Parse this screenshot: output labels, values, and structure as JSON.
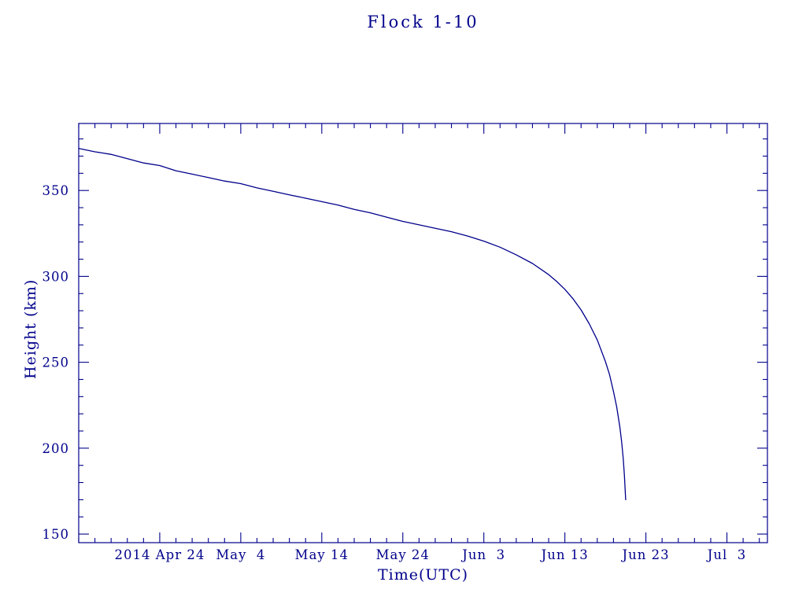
{
  "page": {
    "background": "#ffffff",
    "accent": "#00008b"
  },
  "chart_data": {
    "type": "line",
    "title": "Flock 1-10",
    "xlabel": "Time(UTC)",
    "ylabel": "Height (km)",
    "line_color": "#00008b",
    "axis_color": "#00008b",
    "grid": "off",
    "legend": "none",
    "x_axis": {
      "unit": "date, 2014 (UTC)",
      "day0_date": "2014 Apr 14",
      "range_days": [
        0,
        85
      ],
      "minor_tick_step_days": 2,
      "major_ticks": [
        {
          "day": 10,
          "label": "2014 Apr 24"
        },
        {
          "day": 20,
          "label": "May  4"
        },
        {
          "day": 30,
          "label": "May 14"
        },
        {
          "day": 40,
          "label": "May 24"
        },
        {
          "day": 50,
          "label": "Jun  3"
        },
        {
          "day": 60,
          "label": "Jun 13"
        },
        {
          "day": 70,
          "label": "Jun 23"
        },
        {
          "day": 80,
          "label": "Jul  3"
        }
      ]
    },
    "y_axis": {
      "range": [
        145,
        389
      ],
      "minor_tick_step": 10,
      "major_ticks": [
        150,
        200,
        250,
        300,
        350
      ]
    },
    "series": [
      {
        "name": "Flock 1-10 orbital height",
        "points": [
          [
            0,
            374.5
          ],
          [
            2,
            372.5
          ],
          [
            4,
            371
          ],
          [
            6,
            368.5
          ],
          [
            8,
            366
          ],
          [
            10,
            364.5
          ],
          [
            12,
            361.5
          ],
          [
            14,
            359.5
          ],
          [
            16,
            357.5
          ],
          [
            18,
            355.5
          ],
          [
            20,
            354
          ],
          [
            22,
            351.5
          ],
          [
            24,
            349.5
          ],
          [
            26,
            347.5
          ],
          [
            28,
            345.5
          ],
          [
            30,
            343.5
          ],
          [
            32,
            341.5
          ],
          [
            34,
            339
          ],
          [
            36,
            337
          ],
          [
            38,
            334.5
          ],
          [
            40,
            332
          ],
          [
            42,
            330
          ],
          [
            44,
            328
          ],
          [
            46,
            326
          ],
          [
            48,
            323.5
          ],
          [
            50,
            320.5
          ],
          [
            52,
            317
          ],
          [
            54,
            312.5
          ],
          [
            56,
            307.5
          ],
          [
            58,
            301
          ],
          [
            59,
            297
          ],
          [
            60,
            292.5
          ],
          [
            61,
            287
          ],
          [
            62,
            280.5
          ],
          [
            63,
            272.5
          ],
          [
            64,
            263
          ],
          [
            65,
            250.5
          ],
          [
            65.5,
            243
          ],
          [
            66,
            233
          ],
          [
            66.4,
            224
          ],
          [
            66.8,
            212
          ],
          [
            67,
            204
          ],
          [
            67.2,
            194
          ],
          [
            67.35,
            184
          ],
          [
            67.5,
            170
          ]
        ]
      }
    ]
  }
}
